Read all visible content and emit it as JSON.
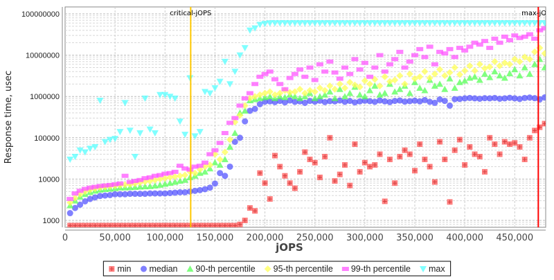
{
  "chart_data": {
    "type": "scatter",
    "title": "",
    "xlabel": "jOPS",
    "ylabel": "Response time, usec",
    "xlim": [
      0,
      481000
    ],
    "ylim": [
      680,
      147000000
    ],
    "yscale": "log",
    "grid": true,
    "legend_position": "bottom",
    "x_ticks": [
      0,
      50000,
      100000,
      150000,
      200000,
      250000,
      300000,
      350000,
      400000,
      450000
    ],
    "x_tick_labels": [
      "0",
      "50,000",
      "100,000",
      "150,000",
      "200,000",
      "250,000",
      "300,000",
      "350,000",
      "400,000",
      "450,000"
    ],
    "y_ticks": [
      1000,
      10000,
      100000,
      1000000,
      10000000,
      100000000
    ],
    "y_tick_labels": [
      "1000",
      "10000",
      "100000",
      "1000000",
      "10000000",
      "100000000"
    ],
    "markers": [
      {
        "label": "critical-jOPS",
        "x": 125700,
        "color": "#ffc800"
      },
      {
        "label": "max-jOPS",
        "x": 473600,
        "color": "#ff0000"
      }
    ],
    "x": [
      5000,
      10000,
      15000,
      20000,
      25000,
      30000,
      35000,
      40000,
      45000,
      50000,
      55000,
      60000,
      65000,
      70000,
      75000,
      80000,
      85000,
      90000,
      95000,
      100000,
      105000,
      110000,
      115000,
      120000,
      125000,
      130000,
      135000,
      140000,
      145000,
      150000,
      155000,
      160000,
      165000,
      170000,
      175000,
      180000,
      185000,
      190000,
      195000,
      200000,
      205000,
      210000,
      215000,
      220000,
      225000,
      230000,
      235000,
      240000,
      245000,
      250000,
      255000,
      260000,
      265000,
      270000,
      275000,
      280000,
      285000,
      290000,
      295000,
      300000,
      305000,
      310000,
      315000,
      320000,
      325000,
      330000,
      335000,
      340000,
      345000,
      350000,
      355000,
      360000,
      365000,
      370000,
      375000,
      380000,
      385000,
      390000,
      395000,
      400000,
      405000,
      410000,
      415000,
      420000,
      425000,
      430000,
      435000,
      440000,
      445000,
      450000,
      455000,
      460000,
      465000,
      470000,
      475000,
      480000
    ],
    "series": [
      {
        "name": "min",
        "color": "#ff5555",
        "marker": "square",
        "values": [
          750,
          750,
          750,
          750,
          750,
          750,
          750,
          750,
          750,
          750,
          750,
          750,
          750,
          750,
          750,
          750,
          750,
          750,
          750,
          750,
          750,
          750,
          750,
          750,
          750,
          750,
          750,
          750,
          750,
          750,
          750,
          750,
          750,
          750,
          800,
          1000,
          2000,
          1700,
          14000,
          8000,
          3300,
          37000,
          20000,
          12000,
          8000,
          6000,
          15000,
          45000,
          30000,
          25000,
          11000,
          35000,
          100000,
          9000,
          13000,
          22000,
          7000,
          70000,
          15000,
          25000,
          20000,
          22000,
          40000,
          2900,
          30000,
          8000,
          35000,
          50000,
          40000,
          16000,
          70000,
          30000,
          20000,
          8500,
          80000,
          30000,
          2800,
          50000,
          90000,
          22000,
          60000,
          40000,
          35000,
          15000,
          100000,
          70000,
          40000,
          80000,
          70000,
          75000,
          60000,
          30000,
          100000,
          150000,
          180000,
          220000
        ]
      },
      {
        "name": "median",
        "color": "#5555ff",
        "marker": "circle",
        "values": [
          1500,
          2000,
          2400,
          2900,
          3300,
          3600,
          3900,
          4000,
          4100,
          4300,
          4300,
          4300,
          4400,
          4400,
          4400,
          4400,
          4500,
          4500,
          4500,
          4500,
          4600,
          4700,
          4800,
          4800,
          5000,
          5200,
          5400,
          5700,
          6200,
          7800,
          14000,
          12000,
          20000,
          80000,
          100000,
          250000,
          450000,
          500000,
          650000,
          750000,
          760000,
          730000,
          780000,
          720000,
          800000,
          740000,
          760000,
          700000,
          780000,
          750000,
          790000,
          730000,
          770000,
          760000,
          800000,
          740000,
          780000,
          720000,
          760000,
          790000,
          770000,
          740000,
          800000,
          760000,
          730000,
          780000,
          800000,
          750000,
          770000,
          790000,
          760000,
          820000,
          740000,
          700000,
          850000,
          780000,
          600000,
          860000,
          870000,
          900000,
          920000,
          900000,
          880000,
          910000,
          900000,
          920000,
          880000,
          900000,
          930000,
          900000,
          870000,
          920000,
          940000,
          910000,
          850000,
          950000
        ]
      },
      {
        "name": "90-th percentile",
        "color": "#55ff55",
        "marker": "triangle-up",
        "values": [
          2300,
          3000,
          3700,
          4300,
          4800,
          5200,
          5500,
          5700,
          5800,
          6000,
          6200,
          6200,
          6300,
          6400,
          6500,
          6600,
          6700,
          6900,
          7200,
          7600,
          8000,
          8500,
          9000,
          9500,
          11000,
          12000,
          14000,
          15000,
          18000,
          25000,
          22000,
          30000,
          60000,
          130000,
          400000,
          450000,
          800000,
          850000,
          900000,
          950000,
          1000000,
          900000,
          1000000,
          950000,
          1100000,
          1000000,
          900000,
          1000000,
          1200000,
          900000,
          1000000,
          1100000,
          1300000,
          900000,
          1500000,
          1000000,
          1200000,
          1700000,
          1100000,
          1000000,
          1400000,
          1800000,
          1100000,
          1200000,
          2000000,
          1300000,
          1500000,
          1800000,
          1200000,
          2200000,
          1600000,
          1400000,
          2500000,
          1800000,
          2000000,
          1500000,
          2700000,
          1600000,
          2200000,
          2400000,
          2800000,
          3000000,
          2500000,
          3500000,
          2900000,
          4000000,
          3200000,
          2800000,
          3600000,
          4500000,
          3200000,
          5000000,
          3500000,
          6000000,
          8000000,
          5000000
        ]
      },
      {
        "name": "95-th percentile",
        "color": "#ffff55",
        "marker": "diamond",
        "values": [
          2700,
          3500,
          4300,
          5000,
          5500,
          5900,
          6200,
          6500,
          6700,
          6900,
          7100,
          7300,
          7500,
          7800,
          8200,
          8600,
          9000,
          9500,
          10000,
          10500,
          11000,
          11500,
          12000,
          12500,
          15000,
          14000,
          17000,
          20000,
          22000,
          40000,
          30000,
          45000,
          90000,
          240000,
          350000,
          600000,
          900000,
          1000000,
          1100000,
          1200000,
          1300000,
          1100000,
          1200000,
          1400000,
          1250000,
          1300000,
          1500000,
          1200000,
          1400000,
          1300000,
          1600000,
          1400000,
          1800000,
          1500000,
          2000000,
          1600000,
          2200000,
          1900000,
          1700000,
          2400000,
          2000000,
          2600000,
          1800000,
          3000000,
          2300000,
          2500000,
          3200000,
          2000000,
          3500000,
          2700000,
          3000000,
          4000000,
          2800000,
          3500000,
          4500000,
          3200000,
          3800000,
          5000000,
          3400000,
          4200000,
          5500000,
          4200000,
          6000000,
          4800000,
          5200000,
          7000000,
          5500000,
          6500000,
          6000000,
          8000000,
          7000000,
          9000000,
          8000000,
          12000000,
          15000000,
          11000000
        ]
      },
      {
        "name": "99-th percentile",
        "color": "#ff55ff",
        "marker": "bar",
        "values": [
          3300,
          4500,
          5200,
          5800,
          6200,
          6500,
          6800,
          7000,
          7200,
          7500,
          7800,
          12000,
          8500,
          9000,
          9500,
          10500,
          11000,
          12000,
          12500,
          13500,
          14000,
          15000,
          21000,
          18000,
          17000,
          20000,
          21000,
          25000,
          40000,
          50000,
          75000,
          130000,
          230000,
          300000,
          600000,
          900000,
          1200000,
          2000000,
          3000000,
          3500000,
          4000000,
          2600000,
          2000000,
          1500000,
          2800000,
          3500000,
          4500000,
          3000000,
          5000000,
          2500000,
          6000000,
          4000000,
          7000000,
          3800000,
          2700000,
          5000000,
          3500000,
          8000000,
          4500000,
          6500000,
          3000000,
          5000000,
          10000000,
          4000000,
          6000000,
          8000000,
          12000000,
          5000000,
          7000000,
          10000000,
          14000000,
          9000000,
          16000000,
          6000000,
          12000000,
          11000000,
          14000000,
          9000000,
          15000000,
          13000000,
          16000000,
          20000000,
          18000000,
          22000000,
          15000000,
          25000000,
          20000000,
          28000000,
          23000000,
          30000000,
          26000000,
          28000000,
          32000000,
          25000000,
          40000000,
          45000000
        ]
      },
      {
        "name": "max",
        "color": "#55ffff",
        "marker": "triangle-down",
        "values": [
          30000,
          35000,
          50000,
          45000,
          55000,
          60000,
          800000,
          80000,
          90000,
          95000,
          140000,
          700000,
          150000,
          35000,
          130000,
          900000,
          160000,
          130000,
          1100000,
          1100000,
          1000000,
          900000,
          250000,
          120000,
          2800000,
          110000,
          140000,
          1300000,
          1200000,
          1600000,
          2300000,
          7000000,
          2000000,
          4000000,
          10000000,
          15000000,
          40000000,
          45000000,
          55000000,
          58000000,
          60000000,
          60000000,
          60000000,
          60000000,
          60000000,
          60000000,
          60000000,
          60000000,
          60000000,
          60000000,
          60000000,
          60000000,
          60000000,
          60000000,
          60000000,
          60000000,
          60000000,
          60000000,
          60000000,
          60000000,
          60000000,
          60000000,
          60000000,
          60000000,
          60000000,
          60000000,
          60000000,
          60000000,
          60000000,
          60000000,
          60000000,
          60000000,
          60000000,
          60000000,
          60000000,
          60000000,
          60000000,
          60000000,
          60000000,
          60000000,
          60000000,
          60000000,
          60000000,
          60000000,
          60000000,
          60000000,
          60000000,
          60000000,
          60000000,
          60000000,
          60000000,
          60000000,
          60000000,
          60000000,
          60000000,
          60000000
        ]
      }
    ]
  }
}
